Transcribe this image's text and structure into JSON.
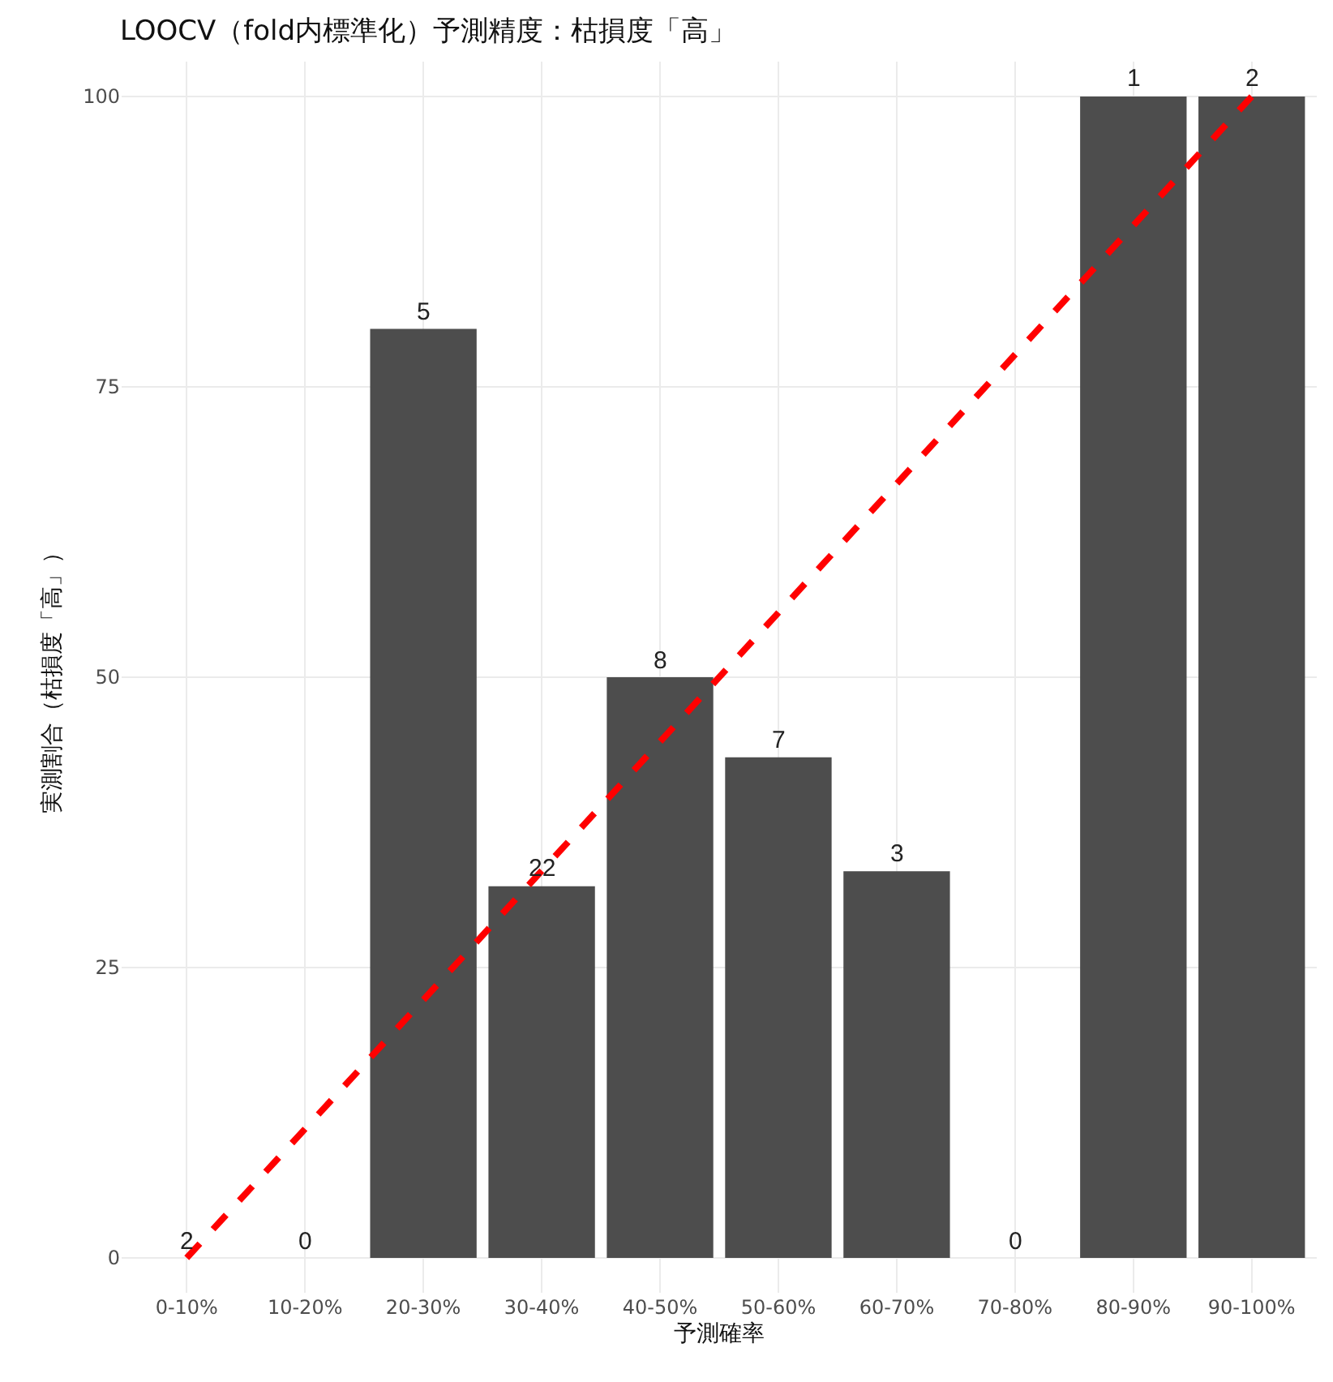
{
  "chart_data": {
    "type": "bar",
    "title": "LOOCV（fold内標準化）予測精度：枯損度「高」",
    "xlabel": "予測確率",
    "ylabel": "実測割合（枯損度「高」）",
    "categories": [
      "0-10%",
      "10-20%",
      "20-30%",
      "30-40%",
      "40-50%",
      "50-60%",
      "60-70%",
      "70-80%",
      "80-90%",
      "90-100%"
    ],
    "series": [
      {
        "color": "#4d4d4d",
        "values": [
          0,
          0,
          80,
          32,
          50,
          43.1,
          33.3,
          0,
          100,
          100
        ]
      },
      {
        "type": "line",
        "color": "#ff0000",
        "line_style": "dashed",
        "x": [
          "0-10%",
          "90-100%"
        ],
        "values": [
          0,
          100
        ]
      }
    ],
    "annotations": [
      {
        "text": "2",
        "x": "0-10%",
        "y": 0
      },
      {
        "text": "0",
        "x": "10-20%",
        "y": 0
      },
      {
        "text": "5",
        "x": "20-30%",
        "y": 80
      },
      {
        "text": "22",
        "x": "30-40%",
        "y": 32
      },
      {
        "text": "8",
        "x": "40-50%",
        "y": 50
      },
      {
        "text": "7",
        "x": "50-60%",
        "y": 43.1
      },
      {
        "text": "3",
        "x": "60-70%",
        "y": 33.3
      },
      {
        "text": "0",
        "x": "70-80%",
        "y": 0
      },
      {
        "text": "1",
        "x": "80-90%",
        "y": 100
      },
      {
        "text": "2",
        "x": "90-100%",
        "y": 100
      }
    ],
    "ylim": [
      -3,
      103
    ],
    "yticks": [
      0,
      25,
      50,
      75,
      100
    ],
    "grid": true
  }
}
